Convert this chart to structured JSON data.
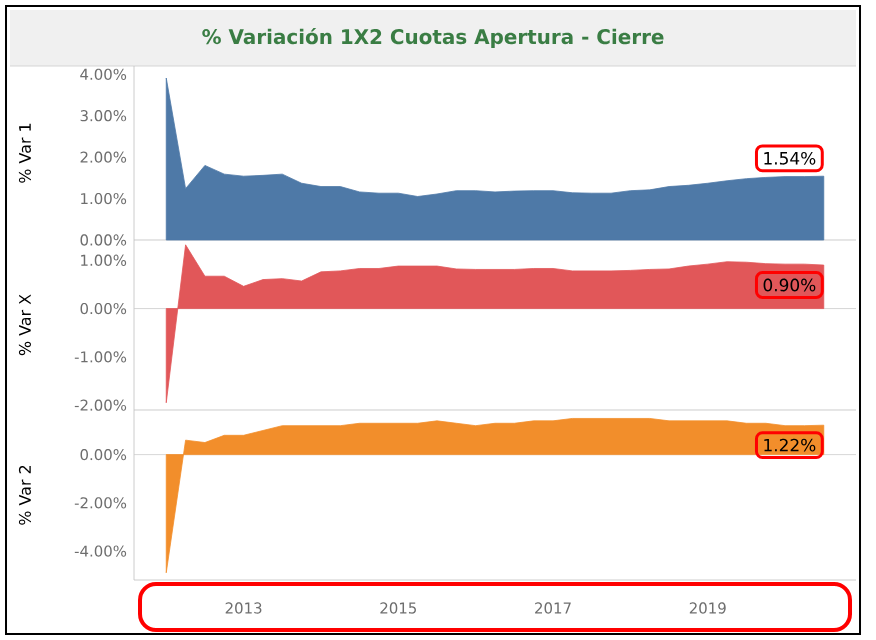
{
  "chart_data": [
    {
      "type": "area",
      "title": "% Variación 1X2 Cuotas Apertura - Cierre",
      "ylabel": "% Var 1",
      "color": "#4e79a7",
      "x": [
        "2012-01",
        "2012-04",
        "2012-07",
        "2012-10",
        "2013-01",
        "2013-04",
        "2013-07",
        "2013-10",
        "2014-01",
        "2014-04",
        "2014-07",
        "2014-10",
        "2015-01",
        "2015-04",
        "2015-07",
        "2015-10",
        "2016-01",
        "2016-04",
        "2016-07",
        "2016-10",
        "2017-01",
        "2017-04",
        "2017-07",
        "2017-10",
        "2018-01",
        "2018-04",
        "2018-07",
        "2018-10",
        "2019-01",
        "2019-04",
        "2019-07",
        "2019-10",
        "2020-01",
        "2020-04",
        "2020-07"
      ],
      "values": [
        3.91,
        1.24,
        1.8,
        1.59,
        1.54,
        1.56,
        1.59,
        1.37,
        1.29,
        1.29,
        1.16,
        1.13,
        1.13,
        1.05,
        1.11,
        1.19,
        1.19,
        1.16,
        1.18,
        1.19,
        1.19,
        1.14,
        1.13,
        1.13,
        1.19,
        1.21,
        1.29,
        1.32,
        1.37,
        1.43,
        1.48,
        1.51,
        1.53,
        1.53,
        1.54
      ],
      "value_labels": [
        null,
        null,
        null,
        null,
        null,
        null,
        null,
        null,
        null,
        null,
        null,
        null,
        null,
        null,
        null,
        null,
        null,
        null,
        null,
        null,
        null,
        null,
        null,
        null,
        null,
        null,
        null,
        null,
        null,
        null,
        null,
        null,
        null,
        null,
        "1.54%"
      ],
      "ylim": [
        0,
        4.2
      ],
      "yticks": [
        {
          "value": 0,
          "label": "0.00%"
        },
        {
          "value": 1,
          "label": "1.00%"
        },
        {
          "value": 2,
          "label": "2.00%"
        },
        {
          "value": 3,
          "label": "3.00%"
        },
        {
          "value": 4,
          "label": "4.00%"
        }
      ],
      "xlim": [
        "2011-08",
        "2020-12"
      ],
      "tick_labels": "y"
    },
    {
      "type": "area",
      "ylabel": "% Var X",
      "color": "#e15759",
      "x": [
        "2012-01",
        "2012-04",
        "2012-07",
        "2012-10",
        "2013-01",
        "2013-04",
        "2013-07",
        "2013-10",
        "2014-01",
        "2014-04",
        "2014-07",
        "2014-10",
        "2015-01",
        "2015-04",
        "2015-07",
        "2015-10",
        "2016-01",
        "2016-04",
        "2016-07",
        "2016-10",
        "2017-01",
        "2017-04",
        "2017-07",
        "2017-10",
        "2018-01",
        "2018-04",
        "2018-07",
        "2018-10",
        "2019-01",
        "2019-04",
        "2019-07",
        "2019-10",
        "2020-01",
        "2020-04",
        "2020-07"
      ],
      "values": [
        -1.95,
        1.32,
        0.67,
        0.67,
        0.46,
        0.6,
        0.62,
        0.57,
        0.76,
        0.78,
        0.83,
        0.83,
        0.88,
        0.88,
        0.88,
        0.82,
        0.81,
        0.81,
        0.81,
        0.83,
        0.83,
        0.78,
        0.78,
        0.78,
        0.79,
        0.81,
        0.82,
        0.88,
        0.92,
        0.97,
        0.96,
        0.93,
        0.92,
        0.92,
        0.9
      ],
      "value_labels": [
        null,
        null,
        null,
        null,
        null,
        null,
        null,
        null,
        null,
        null,
        null,
        null,
        null,
        null,
        null,
        null,
        null,
        null,
        null,
        null,
        null,
        null,
        null,
        null,
        null,
        null,
        null,
        null,
        null,
        null,
        null,
        null,
        null,
        null,
        "0.90%"
      ],
      "ylim": [
        -2.1,
        1.42
      ],
      "yticks": [
        {
          "value": -2,
          "label": "-2.00%"
        },
        {
          "value": -1,
          "label": "-1.00%"
        },
        {
          "value": 0,
          "label": "0.00%"
        },
        {
          "value": 1,
          "label": "1.00%"
        }
      ],
      "ref_lines": [
        {
          "axis": "y",
          "value": 0
        }
      ],
      "xlim": [
        "2011-08",
        "2020-12"
      ],
      "tick_labels": "y"
    },
    {
      "type": "area",
      "ylabel": "% Var 2",
      "color": "#f28e2b",
      "x": [
        "2012-01",
        "2012-04",
        "2012-07",
        "2012-10",
        "2013-01",
        "2013-04",
        "2013-07",
        "2013-10",
        "2014-01",
        "2014-04",
        "2014-07",
        "2014-10",
        "2015-01",
        "2015-04",
        "2015-07",
        "2015-10",
        "2016-01",
        "2016-04",
        "2016-07",
        "2016-10",
        "2017-01",
        "2017-04",
        "2017-07",
        "2017-10",
        "2018-01",
        "2018-04",
        "2018-07",
        "2018-10",
        "2019-01",
        "2019-04",
        "2019-07",
        "2019-10",
        "2020-01",
        "2020-04",
        "2020-07"
      ],
      "values": [
        -4.9,
        0.6,
        0.5,
        0.8,
        0.8,
        1.0,
        1.2,
        1.2,
        1.2,
        1.2,
        1.3,
        1.3,
        1.3,
        1.3,
        1.4,
        1.3,
        1.2,
        1.3,
        1.3,
        1.4,
        1.4,
        1.5,
        1.5,
        1.5,
        1.5,
        1.5,
        1.4,
        1.4,
        1.4,
        1.4,
        1.3,
        1.3,
        1.2,
        1.2,
        1.22
      ],
      "value_labels": [
        null,
        null,
        null,
        null,
        null,
        null,
        null,
        null,
        null,
        null,
        null,
        null,
        null,
        null,
        null,
        null,
        null,
        null,
        null,
        null,
        null,
        null,
        null,
        null,
        null,
        null,
        null,
        null,
        null,
        null,
        null,
        null,
        null,
        null,
        "1.22%"
      ],
      "ylim": [
        -5.2,
        1.85
      ],
      "yticks": [
        {
          "value": -4,
          "label": "-4.00%"
        },
        {
          "value": -2,
          "label": "-2.00%"
        },
        {
          "value": 0,
          "label": "0.00%"
        }
      ],
      "ref_lines": [
        {
          "axis": "y",
          "value": 0
        }
      ],
      "xlim": [
        "2011-08",
        "2020-12"
      ],
      "xticks": [
        "2013",
        "2015",
        "2017",
        "2019"
      ]
    }
  ]
}
